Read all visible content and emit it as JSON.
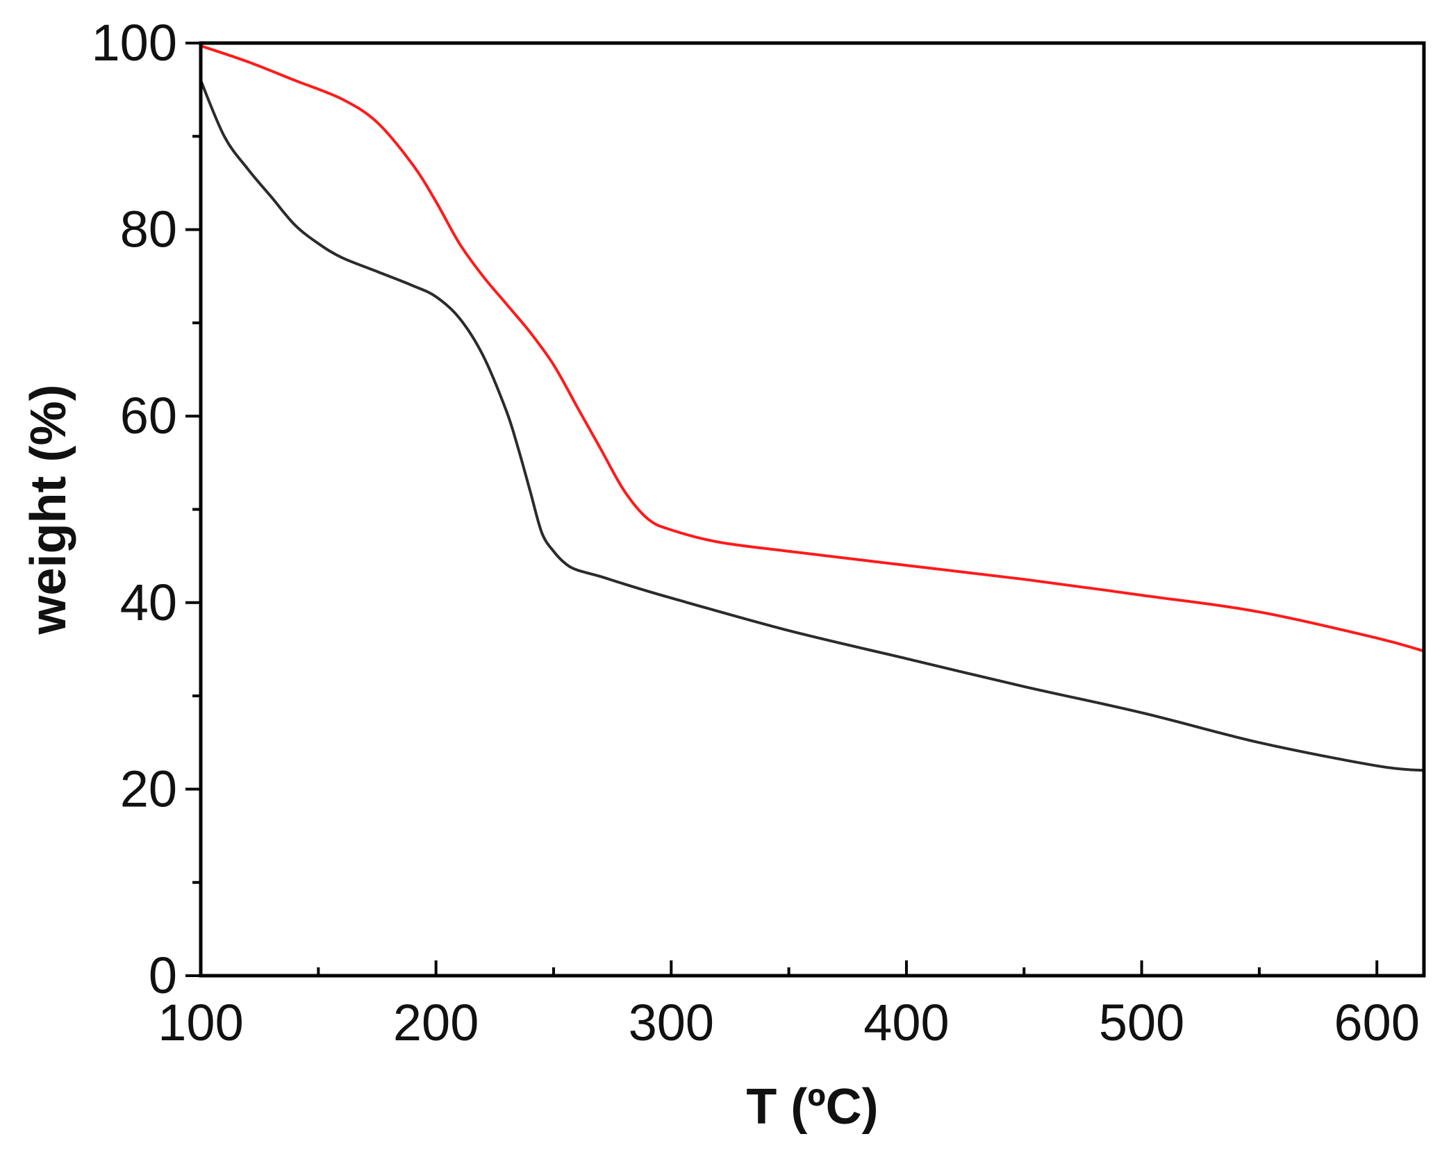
{
  "chart_data": {
    "type": "line",
    "title": "",
    "xlabel": "T (ºC)",
    "ylabel": "weight (%)",
    "xlim": [
      100,
      620
    ],
    "ylim": [
      0,
      100
    ],
    "xticks": [
      100,
      200,
      300,
      400,
      500,
      600
    ],
    "yticks": [
      0,
      20,
      40,
      60,
      80,
      100
    ],
    "grid": false,
    "legend": "none",
    "series": [
      {
        "color": "#ff1a1a",
        "x": [
          100,
          120,
          140,
          160,
          175,
          190,
          200,
          210,
          220,
          230,
          240,
          250,
          260,
          270,
          280,
          290,
          300,
          320,
          350,
          400,
          450,
          500,
          550,
          600,
          620
        ],
        "y": [
          99.7,
          98.0,
          96.0,
          94.0,
          91.5,
          87.0,
          83.0,
          78.5,
          75.0,
          72.0,
          69.0,
          65.5,
          61.0,
          56.5,
          52.0,
          49.0,
          47.8,
          46.5,
          45.5,
          44.0,
          42.5,
          40.8,
          39.0,
          36.2,
          34.8
        ]
      },
      {
        "color": "#2b2b2b",
        "x": [
          100,
          110,
          120,
          130,
          140,
          150,
          160,
          175,
          190,
          200,
          210,
          220,
          230,
          235,
          240,
          245,
          250,
          255,
          260,
          270,
          280,
          300,
          350,
          400,
          450,
          500,
          550,
          600,
          620
        ],
        "y": [
          96.0,
          90.0,
          86.5,
          83.5,
          80.5,
          78.5,
          77.0,
          75.5,
          74.0,
          72.8,
          70.5,
          66.5,
          60.5,
          56.5,
          52.0,
          47.5,
          45.5,
          44.2,
          43.5,
          42.8,
          42.0,
          40.5,
          37.0,
          34.0,
          31.0,
          28.2,
          25.0,
          22.5,
          22.0
        ]
      }
    ]
  }
}
